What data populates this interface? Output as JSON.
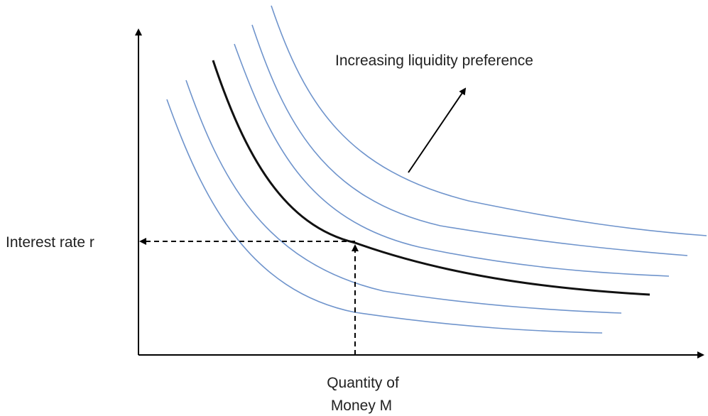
{
  "labels": {
    "y_axis": "Interest rate r",
    "x_axis_line1": "Quantity of",
    "x_axis_line2": "Money M",
    "annotation": "Increasing liquidity preference"
  },
  "colors": {
    "curves": "#6f94cc",
    "highlighted_curve": "#111111",
    "axes": "#000000"
  }
}
